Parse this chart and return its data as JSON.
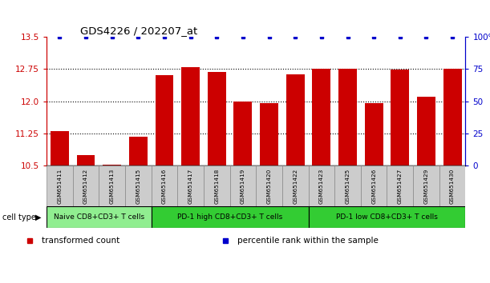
{
  "title": "GDS4226 / 202207_at",
  "samples": [
    "GSM651411",
    "GSM651412",
    "GSM651413",
    "GSM651415",
    "GSM651416",
    "GSM651417",
    "GSM651418",
    "GSM651419",
    "GSM651420",
    "GSM651422",
    "GSM651423",
    "GSM651425",
    "GSM651426",
    "GSM651427",
    "GSM651429",
    "GSM651430"
  ],
  "bar_values": [
    11.3,
    10.75,
    10.52,
    11.18,
    12.6,
    12.8,
    12.68,
    12.0,
    11.95,
    12.62,
    12.75,
    12.75,
    11.95,
    12.73,
    12.1,
    12.75
  ],
  "percentile_values": [
    100,
    100,
    100,
    100,
    100,
    100,
    100,
    100,
    100,
    100,
    100,
    100,
    100,
    100,
    100,
    100
  ],
  "ylim_left": [
    10.5,
    13.5
  ],
  "ylim_right": [
    0,
    100
  ],
  "yticks_left": [
    10.5,
    11.25,
    12.0,
    12.75,
    13.5
  ],
  "yticks_right": [
    0,
    25,
    50,
    75,
    100
  ],
  "bar_color": "#cc0000",
  "percentile_color": "#0000cc",
  "grid_color": "#000000",
  "cell_type_groups": [
    {
      "label": "Naive CD8+CD3+ T cells",
      "start": 0,
      "end": 4,
      "color": "#90ee90"
    },
    {
      "label": "PD-1 high CD8+CD3+ T cells",
      "start": 4,
      "end": 10,
      "color": "#33cc33"
    },
    {
      "label": "PD-1 low CD8+CD3+ T cells",
      "start": 10,
      "end": 16,
      "color": "#33cc33"
    }
  ],
  "legend_items": [
    {
      "label": "transformed count",
      "color": "#cc0000"
    },
    {
      "label": "percentile rank within the sample",
      "color": "#0000cc"
    }
  ],
  "cell_type_label": "cell type"
}
